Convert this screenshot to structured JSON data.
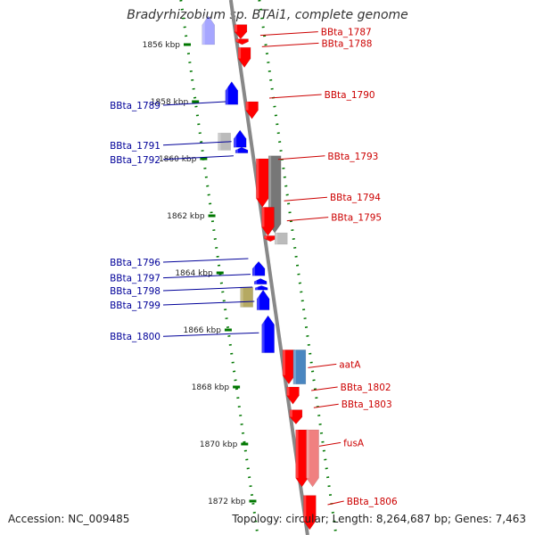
{
  "title": "Bradyrhizobium sp. BTAi1, complete genome",
  "footer": {
    "accession": "Accession: NC_009485",
    "topology": "Topology: circular; Length: 8,264,687 bp; Genes: 7,463"
  },
  "colors": {
    "forward": "#ff0000",
    "reverse": "#0000ff",
    "left_label": "#000099",
    "right_label": "#cc0000",
    "axis": "#888888",
    "ticks": "#007700",
    "gray_gene": "#777777",
    "light_gray_gene": "#bbbbbb",
    "olive_gene": "#b5a962",
    "steel_gene": "#4a86c0",
    "pink_gene": "#f08080"
  },
  "kbp_ticks": [
    {
      "label": "1856 kbp",
      "kb": 1856
    },
    {
      "label": "1858 kbp",
      "kb": 1858
    },
    {
      "label": "1860 kbp",
      "kb": 1860
    },
    {
      "label": "1862 kbp",
      "kb": 1862
    },
    {
      "label": "1864 kbp",
      "kb": 1864
    },
    {
      "label": "1866 kbp",
      "kb": 1866
    },
    {
      "label": "1868 kbp",
      "kb": 1868
    },
    {
      "label": "1870 kbp",
      "kb": 1870
    },
    {
      "label": "1872 kbp",
      "kb": 1872
    }
  ],
  "left_labels": [
    {
      "text": "BBta_1789",
      "kb": 1858.0
    },
    {
      "text": "BBta_1791",
      "kb": 1859.4
    },
    {
      "text": "BBta_1792",
      "kb": 1859.9
    },
    {
      "text": "BBta_1796",
      "kb": 1863.5
    },
    {
      "text": "BBta_1797",
      "kb": 1864.05
    },
    {
      "text": "BBta_1798",
      "kb": 1864.5
    },
    {
      "text": "BBta_1799",
      "kb": 1865.0
    },
    {
      "text": "BBta_1800",
      "kb": 1866.1
    }
  ],
  "right_labels": [
    {
      "text": "BBta_1787",
      "kb": 1855.55
    },
    {
      "text": "BBta_1788",
      "kb": 1855.95
    },
    {
      "text": "BBta_1790",
      "kb": 1857.75
    },
    {
      "text": "BBta_1793",
      "kb": 1859.9
    },
    {
      "text": "BBta_1794",
      "kb": 1861.35
    },
    {
      "text": "BBta_1795",
      "kb": 1862.05
    },
    {
      "text": "aatA",
      "kb": 1867.2
    },
    {
      "text": "BBta_1802",
      "kb": 1868.0
    },
    {
      "text": "BBta_1803",
      "kb": 1868.6
    },
    {
      "text": "fusA",
      "kb": 1869.95
    },
    {
      "text": "BBta_1806",
      "kb": 1872.0
    }
  ]
}
